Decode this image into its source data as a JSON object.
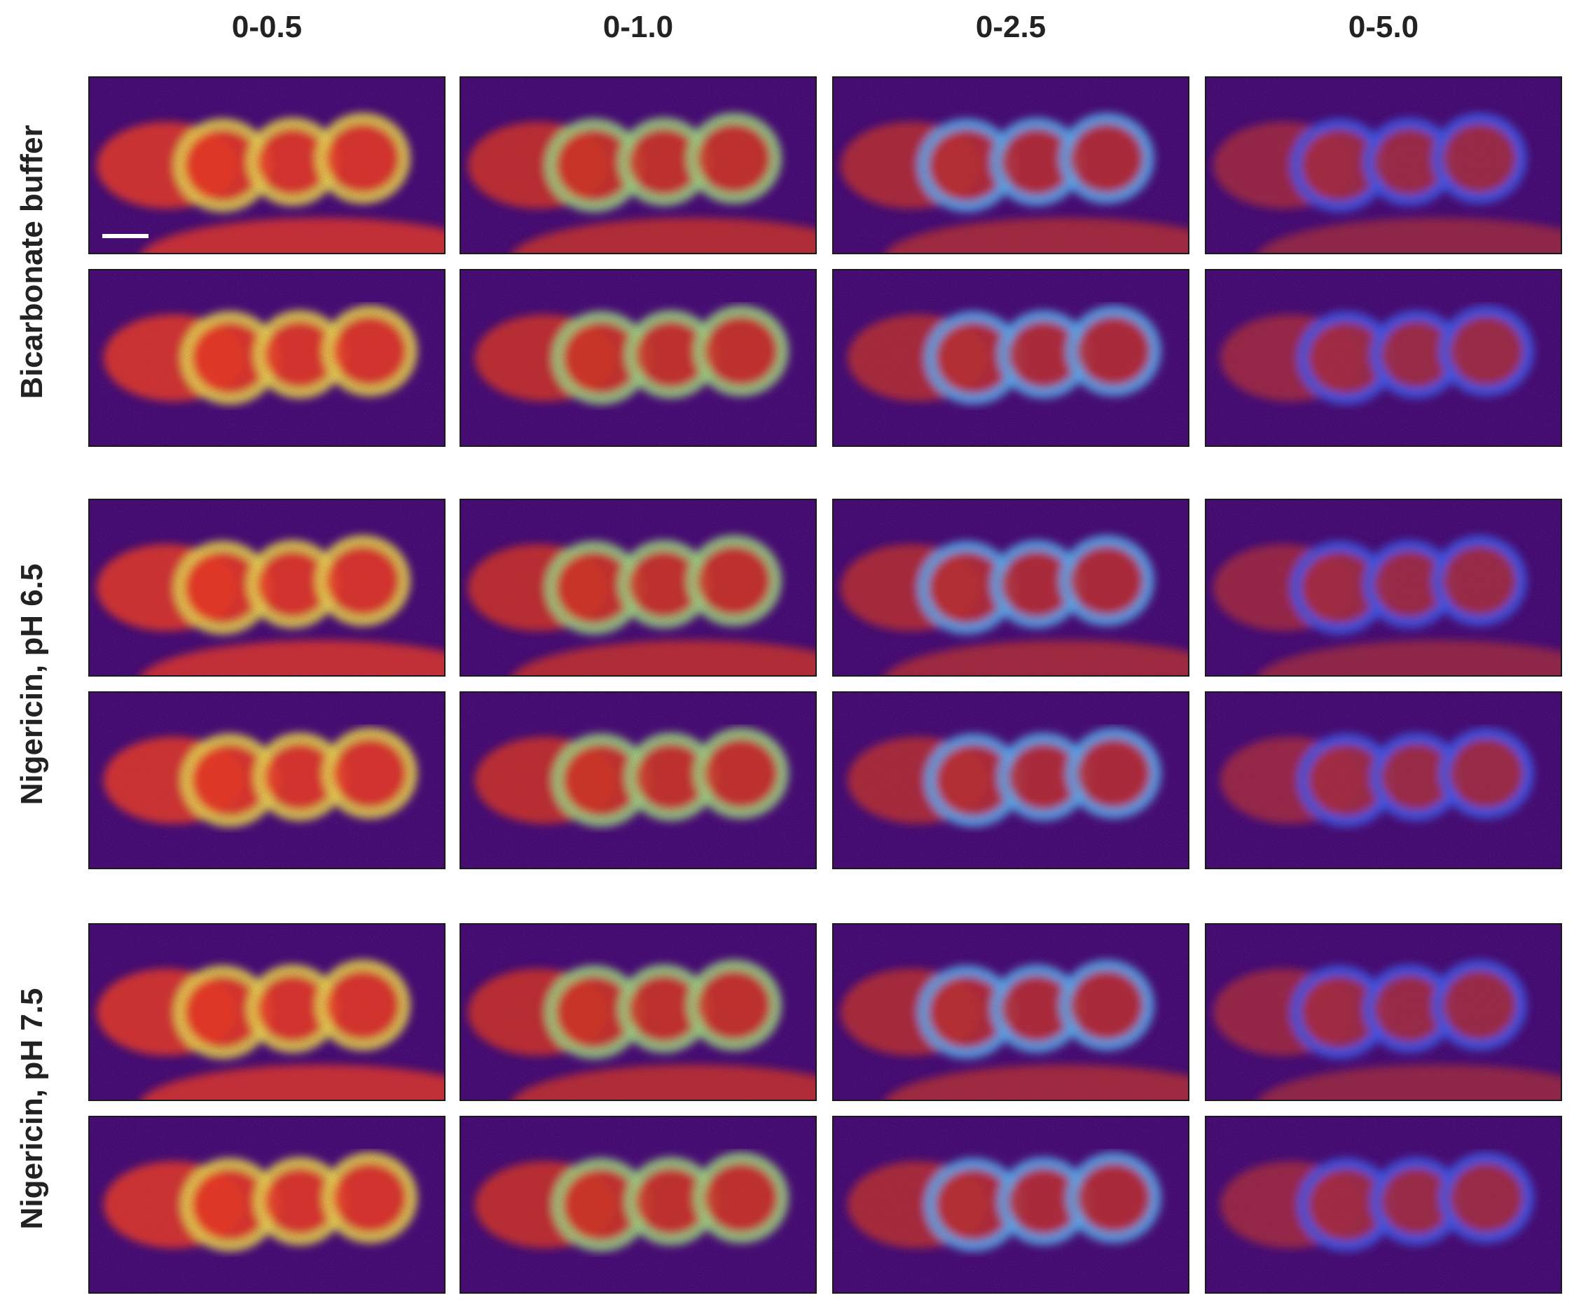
{
  "columns": [
    "0-0.5",
    "0-1.0",
    "0-2.5",
    "0-5.0"
  ],
  "rows": [
    "Bicarbonate buffer",
    "Nigericin, pH 6.5",
    "Nigericin, pH 7.5"
  ]
}
